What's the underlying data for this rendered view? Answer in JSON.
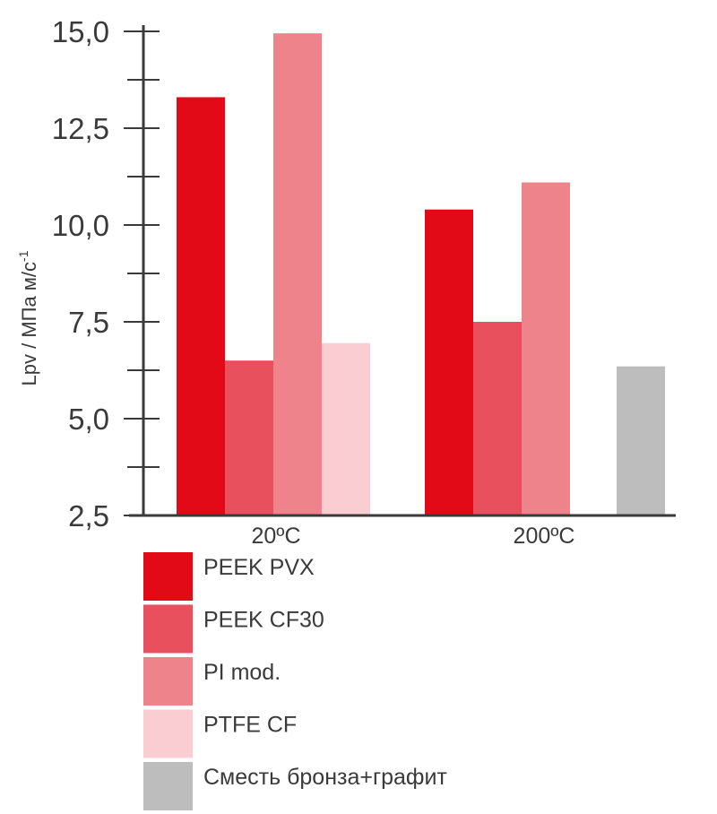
{
  "chart_data": {
    "type": "bar",
    "ylabel": "Lpv / МПа м/с",
    "ylabel_sup": "-1",
    "ylim": [
      2.5,
      15.0
    ],
    "ytick_labels": [
      "15,0",
      "12,5",
      "10,0",
      "7,5",
      "5,0",
      "2,5"
    ],
    "categories": [
      "20ºC",
      "200ºC"
    ],
    "series": [
      {
        "name": "PEEK PVX",
        "color": "#e30a17",
        "values": [
          13.3,
          10.4
        ]
      },
      {
        "name": "PEEK CF30",
        "color": "#e8505e",
        "values": [
          6.5,
          7.5
        ]
      },
      {
        "name": "PI mod.",
        "color": "#ef838b",
        "values": [
          14.95,
          11.1
        ]
      },
      {
        "name": "PTFE CF",
        "color": "#f9cdd2",
        "values": [
          6.95,
          null
        ]
      },
      {
        "name": "Сместь бронза+графит",
        "color": "#bdbdbd",
        "values": [
          null,
          6.35
        ]
      }
    ],
    "legend_position": "bottom-left"
  }
}
